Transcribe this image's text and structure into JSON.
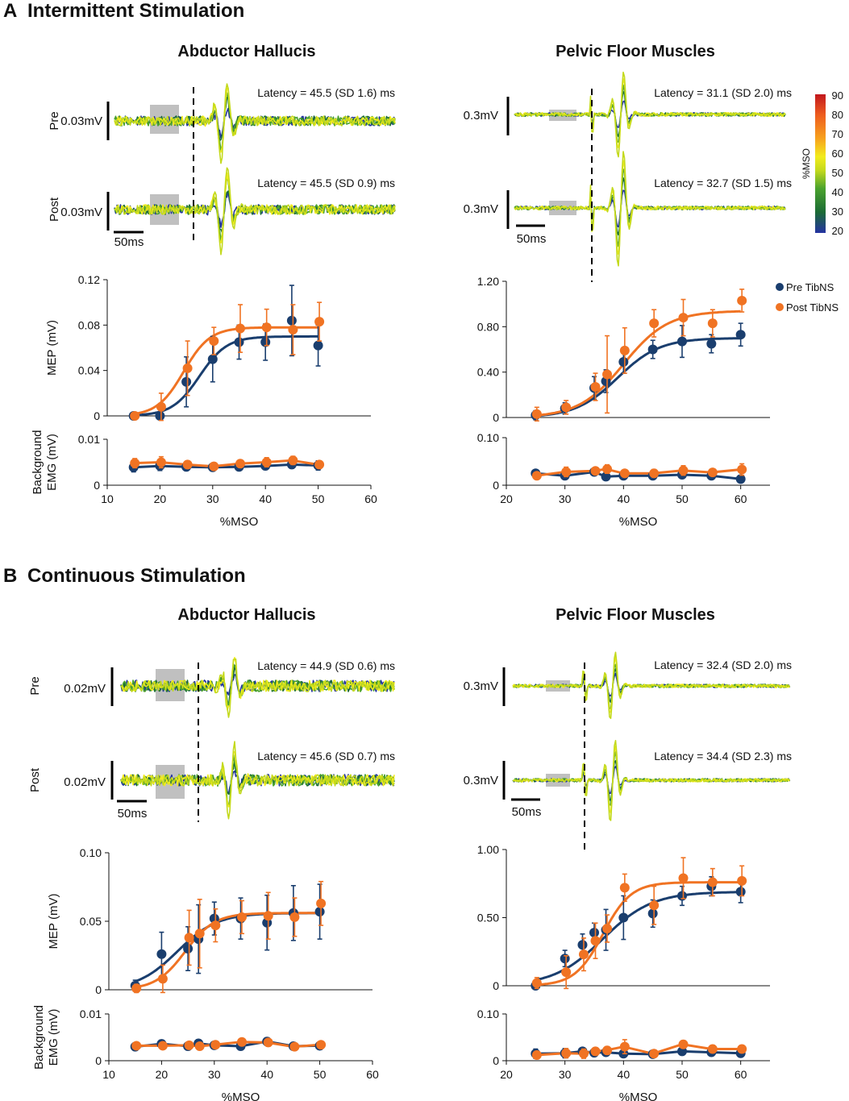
{
  "colors": {
    "pre": "#1a3e6e",
    "post": "#f07323",
    "shade": "#c0c0c0",
    "colorbar": [
      "#2433a1",
      "#1b6b35",
      "#4aa22d",
      "#c3d91c",
      "#f2ec1c",
      "#f7a21d",
      "#ee5d1e",
      "#c2171d"
    ]
  },
  "legend": {
    "pre": "Pre TibNS",
    "post": "Post TibNS"
  },
  "colorbar": {
    "label": "%MSO",
    "ticks": [
      "90",
      "80",
      "70",
      "60",
      "50",
      "40",
      "30",
      "20"
    ]
  },
  "panels": [
    {
      "letter": "A",
      "title": "Intermittent Stimulation",
      "scale_bar": "50ms",
      "muscles": [
        {
          "name": "Abductor Hallucis",
          "traces": [
            {
              "row": "Pre",
              "amplitude_label": "0.03mV",
              "latency_text": "Latency = 45.5 (SD 1.6) ms"
            },
            {
              "row": "Post",
              "amplitude_label": "0.03mV",
              "latency_text": "Latency = 45.5 (SD 0.9) ms"
            }
          ]
        },
        {
          "name": "Pelvic Floor Muscles",
          "traces": [
            {
              "row": "Pre",
              "amplitude_label": "0.3mV",
              "latency_text": "Latency = 31.1 (SD 2.0) ms"
            },
            {
              "row": "Post",
              "amplitude_label": "0.3mV",
              "latency_text": "Latency = 32.7 (SD 1.5) ms"
            }
          ]
        }
      ]
    },
    {
      "letter": "B",
      "title": "Continuous Stimulation",
      "scale_bar": "50ms",
      "muscles": [
        {
          "name": "Abductor Hallucis",
          "traces": [
            {
              "row": "Pre",
              "amplitude_label": "0.02mV",
              "latency_text": "Latency = 44.9 (SD 0.6) ms"
            },
            {
              "row": "Post",
              "amplitude_label": "0.02mV",
              "latency_text": "Latency = 45.6 (SD 0.7) ms"
            }
          ]
        },
        {
          "name": "Pelvic Floor Muscles",
          "traces": [
            {
              "row": "Pre",
              "amplitude_label": "0.3mV",
              "latency_text": "Latency = 32.4 (SD 2.0) ms"
            },
            {
              "row": "Post",
              "amplitude_label": "0.3mV",
              "latency_text": "Latency = 34.4 (SD 2.3) ms"
            }
          ]
        }
      ]
    }
  ],
  "chart_data": [
    {
      "id": "A-AH-MEP",
      "type": "line",
      "ylabel": "MEP (mV)",
      "xlabel": "",
      "xlim": [
        10,
        60
      ],
      "ylim": [
        0,
        0.12
      ],
      "yticks": [
        0,
        0.04,
        0.08,
        0.12
      ],
      "yticklabels": [
        "0",
        "0.04",
        "0.08",
        "0.12"
      ],
      "xticks": [],
      "xticklabels": [],
      "series": [
        {
          "name": "Pre TibNS",
          "x": [
            15,
            20,
            25,
            30,
            35,
            40,
            45,
            50
          ],
          "y": [
            0,
            0,
            0.03,
            0.05,
            0.065,
            0.065,
            0.084,
            0.062
          ],
          "err": [
            0,
            0,
            0.022,
            0.02,
            0.015,
            0.016,
            0.031,
            0.018
          ]
        },
        {
          "name": "Post TibNS",
          "x": [
            15,
            20,
            25,
            30,
            35,
            40,
            45,
            50
          ],
          "y": [
            0,
            0.008,
            0.042,
            0.066,
            0.077,
            0.078,
            0.076,
            0.083
          ],
          "err": [
            0,
            0.012,
            0.024,
            0.012,
            0.021,
            0.016,
            0.022,
            0.017
          ]
        }
      ],
      "fits": [
        {
          "name": "Pre TibNS",
          "max": 0.07,
          "x50": 27.5,
          "k": 2.6
        },
        {
          "name": "Post TibNS",
          "max": 0.078,
          "x50": 24.5,
          "k": 2.5
        }
      ]
    },
    {
      "id": "A-AH-BG",
      "type": "line",
      "ylabel": "Background EMG (mV)",
      "xlabel": "%MSO",
      "xlim": [
        10,
        60
      ],
      "ylim": [
        0,
        0.01
      ],
      "yticks": [
        0,
        0.01
      ],
      "yticklabels": [
        "0",
        "0.01"
      ],
      "xticks": [
        10,
        20,
        30,
        40,
        50,
        60
      ],
      "xticklabels": [
        "10",
        "20",
        "30",
        "40",
        "50",
        "60"
      ],
      "series": [
        {
          "name": "Pre TibNS",
          "x": [
            15,
            20,
            25,
            30,
            35,
            40,
            45,
            50
          ],
          "y": [
            0.0039,
            0.0042,
            0.004,
            0.0039,
            0.004,
            0.0042,
            0.0045,
            0.0043
          ],
          "err": [
            0.001,
            0.001,
            0.0008,
            0.0008,
            0.0008,
            0.0008,
            0.0008,
            0.001
          ]
        },
        {
          "name": "Post TibNS",
          "x": [
            15,
            20,
            25,
            30,
            35,
            40,
            45,
            50
          ],
          "y": [
            0.0048,
            0.005,
            0.0045,
            0.0041,
            0.0047,
            0.005,
            0.0054,
            0.0045
          ],
          "err": [
            0.001,
            0.0012,
            0.0008,
            0.0008,
            0.0008,
            0.001,
            0.0009,
            0.0008
          ]
        }
      ]
    },
    {
      "id": "A-PFM-MEP",
      "type": "line",
      "ylabel": "",
      "xlabel": "",
      "xlim": [
        20,
        65
      ],
      "ylim": [
        0,
        1.2
      ],
      "yticks": [
        0,
        0.4,
        0.8,
        1.2
      ],
      "yticklabels": [
        "0",
        "0.40",
        "0.80",
        "1.20"
      ],
      "xticks": [],
      "xticklabels": [],
      "series": [
        {
          "name": "Pre TibNS",
          "x": [
            25,
            30,
            35,
            37,
            40,
            45,
            50,
            55,
            60
          ],
          "y": [
            0.02,
            0.08,
            0.26,
            0.32,
            0.49,
            0.6,
            0.67,
            0.65,
            0.73
          ],
          "err": [
            0.04,
            0.05,
            0.1,
            0.1,
            0.1,
            0.08,
            0.14,
            0.08,
            0.1
          ]
        },
        {
          "name": "Post TibNS",
          "x": [
            25,
            30,
            35,
            37,
            40,
            45,
            50,
            55,
            60
          ],
          "y": [
            0.03,
            0.09,
            0.27,
            0.38,
            0.59,
            0.83,
            0.88,
            0.83,
            1.03
          ],
          "err": [
            0.06,
            0.06,
            0.12,
            0.34,
            0.2,
            0.12,
            0.16,
            0.12,
            0.1
          ]
        }
      ],
      "fits": [
        {
          "name": "Pre TibNS",
          "max": 0.7,
          "x50": 39.0,
          "k": 3.6
        },
        {
          "name": "Post TibNS",
          "max": 0.94,
          "x50": 40.0,
          "k": 3.8
        }
      ]
    },
    {
      "id": "A-PFM-BG",
      "type": "line",
      "ylabel": "",
      "xlabel": "%MSO",
      "xlim": [
        20,
        65
      ],
      "ylim": [
        0,
        0.1
      ],
      "yticks": [
        0,
        0.1
      ],
      "yticklabels": [
        "0",
        "0.10"
      ],
      "xticks": [
        20,
        30,
        40,
        50,
        60
      ],
      "xticklabels": [
        "20",
        "30",
        "40",
        "50",
        "60"
      ],
      "series": [
        {
          "name": "Pre TibNS",
          "x": [
            25,
            30,
            35,
            37,
            40,
            45,
            50,
            55,
            60
          ],
          "y": [
            0.025,
            0.02,
            0.028,
            0.018,
            0.02,
            0.02,
            0.022,
            0.02,
            0.013
          ],
          "err": [
            0.005,
            0.006,
            0.006,
            0.005,
            0.005,
            0.005,
            0.006,
            0.005,
            0.005
          ]
        },
        {
          "name": "Post TibNS",
          "x": [
            25,
            30,
            35,
            37,
            40,
            45,
            50,
            55,
            60
          ],
          "y": [
            0.02,
            0.028,
            0.03,
            0.034,
            0.025,
            0.025,
            0.031,
            0.027,
            0.033
          ],
          "err": [
            0.006,
            0.01,
            0.006,
            0.009,
            0.007,
            0.008,
            0.01,
            0.007,
            0.012
          ]
        }
      ]
    },
    {
      "id": "B-AH-MEP",
      "type": "line",
      "ylabel": "MEP (mV)",
      "xlabel": "",
      "xlim": [
        10,
        60
      ],
      "ylim": [
        0,
        0.1
      ],
      "yticks": [
        0,
        0.05,
        0.1
      ],
      "yticklabels": [
        "0",
        "0.05",
        "0.10"
      ],
      "xticks": [],
      "xticklabels": [],
      "series": [
        {
          "name": "Pre TibNS",
          "x": [
            15,
            20,
            25,
            27,
            30,
            35,
            40,
            45,
            50
          ],
          "y": [
            0.003,
            0.026,
            0.03,
            0.037,
            0.052,
            0.052,
            0.049,
            0.056,
            0.057
          ],
          "err": [
            0.004,
            0.016,
            0.016,
            0.025,
            0.012,
            0.015,
            0.02,
            0.02,
            0.02
          ]
        },
        {
          "name": "Post TibNS",
          "x": [
            15,
            20,
            25,
            27,
            30,
            35,
            40,
            45,
            50
          ],
          "y": [
            0.001,
            0.008,
            0.038,
            0.041,
            0.047,
            0.053,
            0.054,
            0.053,
            0.063
          ],
          "err": [
            0.003,
            0.01,
            0.02,
            0.025,
            0.012,
            0.012,
            0.017,
            0.014,
            0.016
          ]
        }
      ],
      "fits": [
        {
          "name": "Pre TibNS",
          "max": 0.056,
          "x50": 23.0,
          "k": 3.8
        },
        {
          "name": "Post TibNS",
          "max": 0.056,
          "x50": 24.5,
          "k": 2.8
        }
      ]
    },
    {
      "id": "B-AH-BG",
      "type": "line",
      "ylabel": "Background EMG (mV)",
      "xlabel": "%MSO",
      "xlim": [
        10,
        60
      ],
      "ylim": [
        0,
        0.01
      ],
      "yticks": [
        0,
        0.01
      ],
      "yticklabels": [
        "0",
        "0.01"
      ],
      "xticks": [
        10,
        20,
        30,
        40,
        50,
        60
      ],
      "xticklabels": [
        "10",
        "20",
        "30",
        "40",
        "50",
        "60"
      ],
      "series": [
        {
          "name": "Pre TibNS",
          "x": [
            15,
            20,
            25,
            27,
            30,
            35,
            40,
            45,
            50
          ],
          "y": [
            0.003,
            0.0036,
            0.0031,
            0.0037,
            0.0033,
            0.0031,
            0.0041,
            0.0031,
            0.0032
          ],
          "err": [
            0.0008,
            0.0008,
            0.0008,
            0.0008,
            0.0006,
            0.0008,
            0.0008,
            0.0008,
            0.0008
          ]
        },
        {
          "name": "Post TibNS",
          "x": [
            15,
            20,
            25,
            27,
            30,
            35,
            40,
            45,
            50
          ],
          "y": [
            0.0032,
            0.0032,
            0.0033,
            0.0031,
            0.0034,
            0.004,
            0.0039,
            0.003,
            0.0034
          ],
          "err": [
            0.0006,
            0.0006,
            0.0006,
            0.0006,
            0.0006,
            0.0006,
            0.0008,
            0.0006,
            0.0006
          ]
        }
      ]
    },
    {
      "id": "B-PFM-MEP",
      "type": "line",
      "ylabel": "",
      "xlabel": "",
      "xlim": [
        20,
        65
      ],
      "ylim": [
        0,
        1.0
      ],
      "yticks": [
        0,
        0.5,
        1.0
      ],
      "yticklabels": [
        "0",
        "0.50",
        "1.00"
      ],
      "xticks": [],
      "xticklabels": [],
      "series": [
        {
          "name": "Pre TibNS",
          "x": [
            25,
            30,
            33,
            35,
            37,
            40,
            45,
            50,
            55,
            60
          ],
          "y": [
            0.0,
            0.2,
            0.3,
            0.39,
            0.41,
            0.5,
            0.53,
            0.66,
            0.73,
            0.69
          ],
          "err": [
            0.02,
            0.06,
            0.08,
            0.07,
            0.15,
            0.16,
            0.1,
            0.07,
            0.07,
            0.08
          ]
        },
        {
          "name": "Post TibNS",
          "x": [
            25,
            30,
            33,
            35,
            37,
            40,
            45,
            50,
            55,
            60
          ],
          "y": [
            0.02,
            0.1,
            0.23,
            0.33,
            0.42,
            0.72,
            0.59,
            0.79,
            0.76,
            0.77
          ],
          "err": [
            0.04,
            0.12,
            0.12,
            0.13,
            0.1,
            0.1,
            0.14,
            0.15,
            0.1,
            0.11
          ]
        }
      ],
      "fits": [
        {
          "name": "Pre TibNS",
          "max": 0.69,
          "x50": 36.5,
          "k": 4.2
        },
        {
          "name": "Post TibNS",
          "max": 0.76,
          "x50": 36.5,
          "k": 2.4
        }
      ]
    },
    {
      "id": "B-PFM-BG",
      "type": "line",
      "ylabel": "",
      "xlabel": "%MSO",
      "xlim": [
        20,
        65
      ],
      "ylim": [
        0,
        0.1
      ],
      "yticks": [
        0,
        0.1
      ],
      "yticklabels": [
        "0",
        "0.10"
      ],
      "xticks": [
        20,
        30,
        40,
        50,
        60
      ],
      "xticklabels": [
        "20",
        "30",
        "40",
        "50",
        "60"
      ],
      "series": [
        {
          "name": "Pre TibNS",
          "x": [
            25,
            30,
            33,
            35,
            37,
            40,
            45,
            50,
            55,
            60
          ],
          "y": [
            0.015,
            0.016,
            0.02,
            0.017,
            0.018,
            0.015,
            0.014,
            0.02,
            0.018,
            0.016
          ],
          "err": [
            0.01,
            0.01,
            0.006,
            0.006,
            0.006,
            0.006,
            0.005,
            0.006,
            0.006,
            0.006
          ]
        },
        {
          "name": "Post TibNS",
          "x": [
            25,
            30,
            33,
            35,
            37,
            40,
            45,
            50,
            55,
            60
          ],
          "y": [
            0.012,
            0.016,
            0.015,
            0.02,
            0.022,
            0.03,
            0.015,
            0.035,
            0.025,
            0.025
          ],
          "err": [
            0.008,
            0.01,
            0.01,
            0.008,
            0.008,
            0.015,
            0.006,
            0.008,
            0.008,
            0.008
          ]
        }
      ]
    }
  ]
}
